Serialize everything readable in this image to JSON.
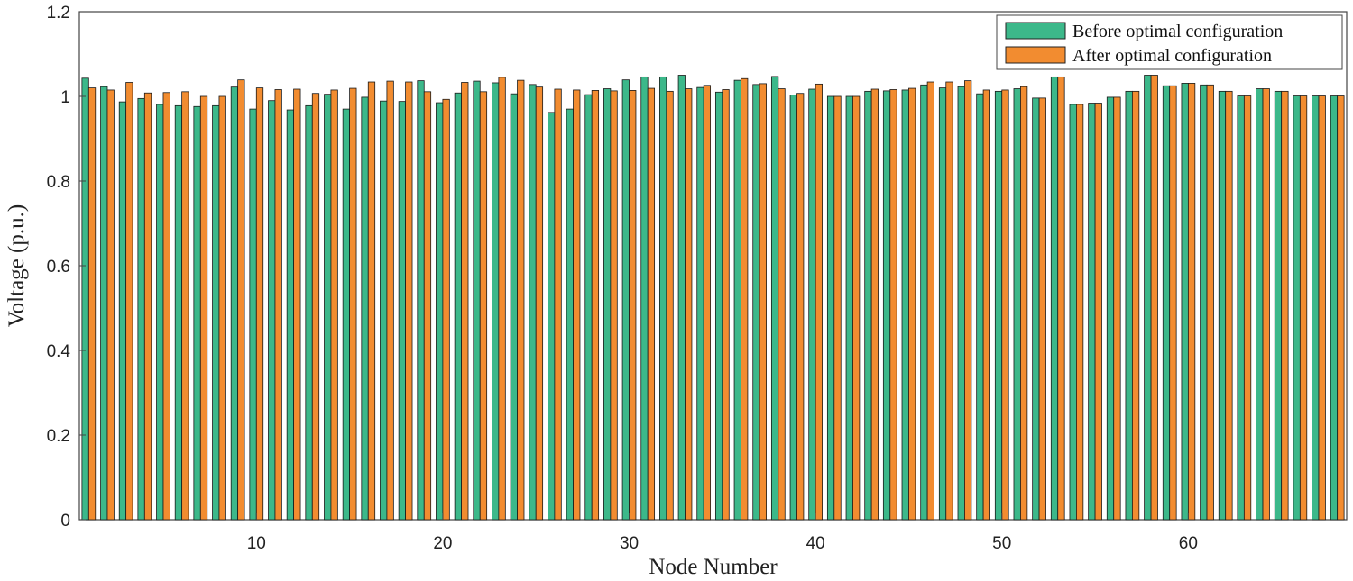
{
  "chart_data": {
    "type": "bar",
    "xlabel": "Node Number",
    "ylabel": "Voltage (p.u.)",
    "xlim": [
      0.5,
      68.5
    ],
    "ylim": [
      0,
      1.2
    ],
    "xticks": [
      10,
      20,
      30,
      40,
      50,
      60
    ],
    "yticks": [
      0,
      0.2,
      0.4,
      0.6,
      0.8,
      1,
      1.2
    ],
    "ytick_labels": [
      "0",
      "0.2",
      "0.4",
      "0.6",
      "0.8",
      "1",
      "1.2"
    ],
    "grid": false,
    "legend_position": "top-right",
    "categories": [
      1,
      2,
      3,
      4,
      5,
      6,
      7,
      8,
      9,
      10,
      11,
      12,
      13,
      14,
      15,
      16,
      17,
      18,
      19,
      20,
      21,
      22,
      23,
      24,
      25,
      26,
      27,
      28,
      29,
      30,
      31,
      32,
      33,
      34,
      35,
      36,
      37,
      38,
      39,
      40,
      41,
      42,
      43,
      44,
      45,
      46,
      47,
      48,
      49,
      50,
      51,
      52,
      53,
      54,
      55,
      56,
      57,
      58,
      59,
      60,
      61,
      62,
      63,
      64,
      65,
      66,
      67,
      68
    ],
    "series": [
      {
        "name": "Before optimal configuration",
        "color": "#3cb88a",
        "values": [
          1.043,
          1.023,
          0.987,
          0.995,
          0.981,
          0.978,
          0.976,
          0.978,
          1.022,
          0.97,
          0.99,
          0.968,
          0.978,
          1.005,
          0.97,
          0.998,
          0.989,
          0.988,
          1.037,
          0.985,
          1.008,
          1.036,
          1.032,
          1.006,
          1.028,
          0.962,
          0.97,
          1.004,
          1.018,
          1.039,
          1.046,
          1.046,
          1.05,
          1.021,
          1.01,
          1.038,
          1.028,
          1.047,
          1.003,
          1.017,
          1.0,
          1.0,
          1.012,
          1.013,
          1.015,
          1.027,
          1.02,
          1.023,
          1.006,
          1.012,
          1.018,
          0.996,
          1.046,
          0.981,
          0.984,
          0.998,
          1.012,
          1.05,
          1.025,
          1.031,
          1.027,
          1.012,
          1.001,
          1.018,
          1.012,
          1.001,
          1.001,
          1.001
        ]
      },
      {
        "name": "After optimal configuration",
        "color": "#f28c30",
        "values": [
          1.02,
          1.015,
          1.033,
          1.008,
          1.009,
          1.011,
          1.0,
          1.0,
          1.039,
          1.02,
          1.016,
          1.017,
          1.007,
          1.015,
          1.019,
          1.034,
          1.036,
          1.034,
          1.011,
          0.993,
          1.033,
          1.011,
          1.045,
          1.038,
          1.022,
          1.017,
          1.015,
          1.014,
          1.013,
          1.014,
          1.019,
          1.012,
          1.018,
          1.026,
          1.016,
          1.042,
          1.03,
          1.018,
          1.007,
          1.029,
          1.0,
          1.0,
          1.017,
          1.016,
          1.019,
          1.034,
          1.034,
          1.037,
          1.015,
          1.015,
          1.023,
          0.996,
          1.046,
          0.981,
          0.984,
          0.998,
          1.012,
          1.05,
          1.025,
          1.031,
          1.027,
          1.012,
          1.001,
          1.018,
          1.012,
          1.001,
          1.001,
          1.001
        ]
      }
    ]
  }
}
